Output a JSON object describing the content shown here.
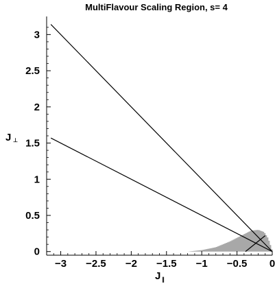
{
  "chart_data": {
    "type": "line",
    "title": "MultiFlavour Scaling Region, s= 4",
    "xlabel": {
      "main": "J",
      "sub": "∥"
    },
    "ylabel": {
      "main": "J",
      "sub": "⊥"
    },
    "xlim": [
      -3.2,
      0.0
    ],
    "ylim": [
      -0.05,
      3.25
    ],
    "x_ticks": [
      -3,
      -2.5,
      -2,
      -1.5,
      -1,
      -0.5,
      0
    ],
    "x_tick_labels": [
      "−3",
      "−2.5",
      "−2",
      "−1.5",
      "−1",
      "−0.5",
      "0"
    ],
    "y_ticks": [
      0,
      0.5,
      1,
      1.5,
      2,
      2.5,
      3
    ],
    "y_tick_labels": [
      "0",
      "0.5",
      "1",
      "1.5",
      "2",
      "2.5",
      "3"
    ],
    "grid": false,
    "series": [
      {
        "points": [
          [
            -3.14,
            3.14
          ],
          [
            0,
            0
          ]
        ],
        "color": "#000000"
      },
      {
        "points": [
          [
            -3.14,
            1.57
          ],
          [
            0,
            0
          ]
        ],
        "color": "#000000"
      },
      {
        "points": [
          [
            -0.38,
            0.0
          ],
          [
            -0.1,
            0.22
          ]
        ],
        "color": "#000000"
      }
    ],
    "region": {
      "color": "#a8a8a8",
      "x_start": -1.2,
      "x_end": 0.0,
      "step": 0.02,
      "profile_x": [
        -1.2,
        -1.0,
        -0.8,
        -0.6,
        -0.4,
        -0.3,
        -0.2,
        -0.12,
        -0.06,
        0.0
      ],
      "profile_y": [
        0.0,
        0.02,
        0.06,
        0.14,
        0.24,
        0.29,
        0.3,
        0.27,
        0.18,
        0.0
      ]
    }
  }
}
